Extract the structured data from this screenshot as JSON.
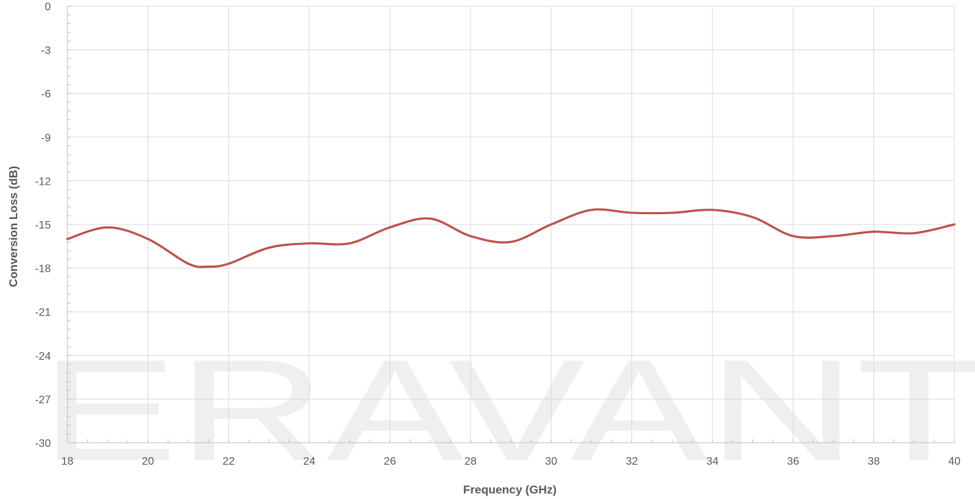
{
  "chart_data": {
    "type": "line",
    "title": "",
    "xlabel": "Frequency (GHz)",
    "ylabel": "Conversion Loss (dB)",
    "xlim": [
      18,
      40
    ],
    "ylim": [
      -30,
      0
    ],
    "x_ticks": [
      18,
      20,
      22,
      24,
      26,
      28,
      30,
      32,
      34,
      36,
      38,
      40
    ],
    "y_ticks": [
      0,
      -3,
      -6,
      -9,
      -12,
      -15,
      -18,
      -21,
      -24,
      -27,
      -30
    ],
    "grid": true,
    "legend": "none",
    "watermark": "ERAVANT",
    "colors": {
      "series": "#c0504d",
      "grid": "#d9d9d9",
      "axis": "#bfbfbf",
      "text": "#595959",
      "watermark": "#efefef"
    },
    "series": [
      {
        "x": [
          18,
          19,
          20,
          21,
          21.5,
          22,
          23,
          24,
          25,
          26,
          27,
          28,
          29,
          30,
          31,
          32,
          33,
          34,
          35,
          36,
          37,
          38,
          39,
          40
        ],
        "y": [
          -16.0,
          -15.2,
          -16.0,
          -17.7,
          -17.9,
          -17.7,
          -16.6,
          -16.3,
          -16.3,
          -15.2,
          -14.6,
          -15.8,
          -16.2,
          -15.0,
          -14.0,
          -14.2,
          -14.2,
          -14.0,
          -14.5,
          -15.8,
          -15.8,
          -15.5,
          -15.6,
          -15.0
        ]
      }
    ]
  }
}
